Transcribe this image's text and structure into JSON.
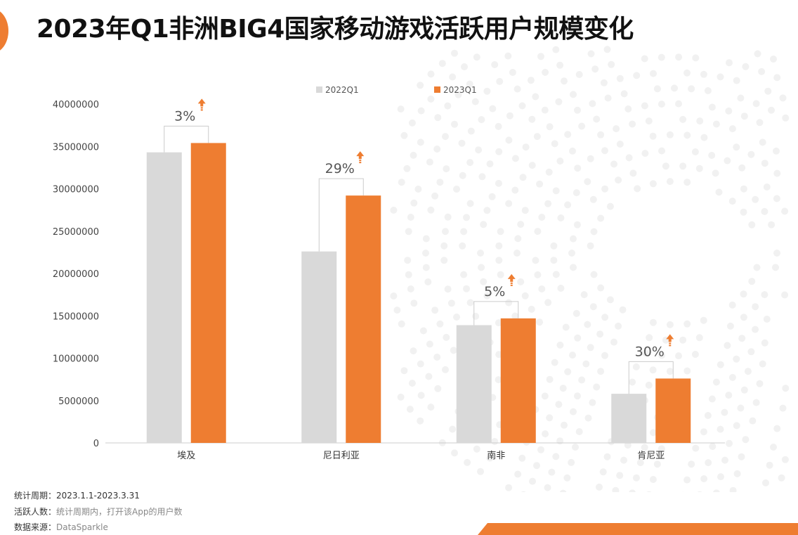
{
  "title": "2023年Q1非洲BIG4国家移动游戏活跃用户规模变化",
  "colors": {
    "accent": "#ee7d31",
    "series_2022": "#d9d9d9",
    "series_2023": "#ee7d31"
  },
  "chart_data": {
    "type": "bar",
    "categories": [
      "埃及",
      "尼日利亚",
      "南非",
      "肯尼亚"
    ],
    "series": [
      {
        "name": "2022Q1",
        "values": [
          34300000,
          22600000,
          13900000,
          5800000
        ]
      },
      {
        "name": "2023Q1",
        "values": [
          35400000,
          29200000,
          14700000,
          7600000
        ]
      }
    ],
    "growth_labels": [
      "3%",
      "29%",
      "5%",
      "30%"
    ],
    "yticks": [
      "0",
      "5000000",
      "10000000",
      "15000000",
      "20000000",
      "25000000",
      "30000000",
      "35000000",
      "40000000"
    ],
    "ylim": [
      0,
      40000000
    ],
    "legend_position": "top-center",
    "grid": false
  },
  "footer": {
    "period_label": "统计周期：",
    "period_value": "2023.1.1-2023.3.31",
    "active_label": "活跃人数：",
    "active_value": "统计周期内，打开该App的用户数",
    "source_label": "数据来源：",
    "source_value": "DataSparkle"
  }
}
